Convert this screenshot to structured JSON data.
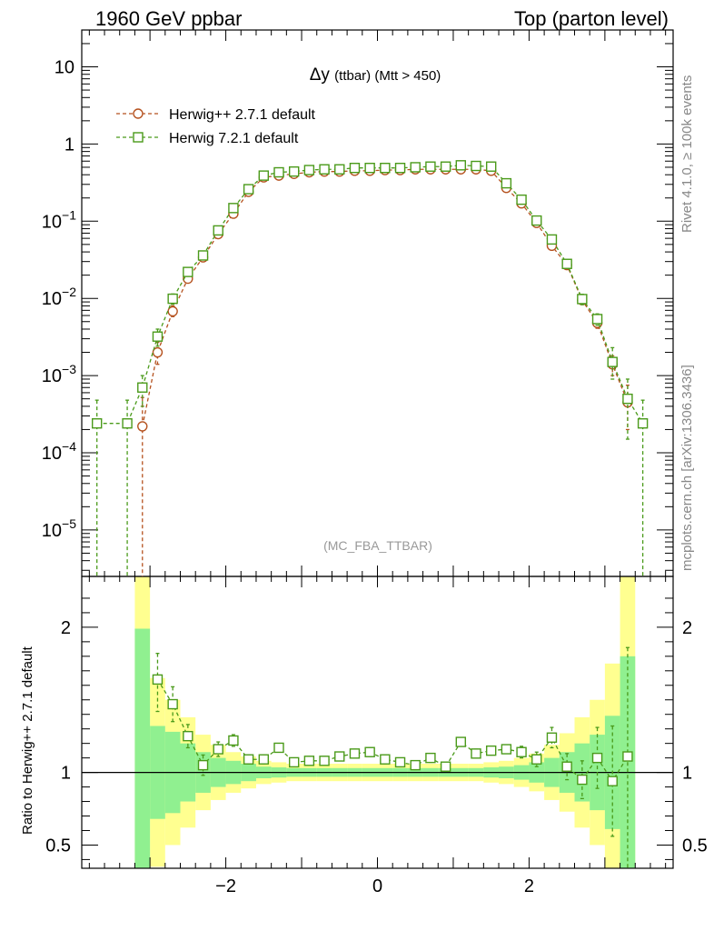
{
  "header": {
    "left": "1960 GeV ppbar",
    "right": "Top (parton level)"
  },
  "side_labels": {
    "rivet": "Rivet 4.1.0, ≥ 100k events",
    "mcplots": "mcplots.cern.ch [arXiv:1306.3436]"
  },
  "colors": {
    "herwigpp": "#b5521f",
    "herwig7": "#4a9a1a",
    "band_green": "#90f090",
    "band_yellow": "#ffff90"
  },
  "chart_data": [
    {
      "type": "line",
      "title_main": "Δy",
      "title_sub": "(ttbar) (Mtt > 450)",
      "watermark": "(MC_FBA_TTBAR)",
      "yscale": "log",
      "xlim": [
        -3.9,
        3.9
      ],
      "ylim": [
        2.5e-06,
        30
      ],
      "yticks": [
        {
          "v": 10,
          "base": "10",
          "exp": ""
        },
        {
          "v": 1,
          "base": "1",
          "exp": ""
        },
        {
          "v": 0.1,
          "base": "10",
          "exp": "−1"
        },
        {
          "v": 0.01,
          "base": "10",
          "exp": "−2"
        },
        {
          "v": 0.001,
          "base": "10",
          "exp": "−3"
        },
        {
          "v": 0.0001,
          "base": "10",
          "exp": "−4"
        },
        {
          "v": 1e-05,
          "base": "10",
          "exp": "−5"
        }
      ],
      "legend_position": "top-left",
      "series": [
        {
          "name": "Herwig++ 2.7.1 default",
          "marker": "circle",
          "color": "#b5521f",
          "x": [
            -3.1,
            -2.9,
            -2.7,
            -2.5,
            -2.3,
            -2.1,
            -1.9,
            -1.7,
            -1.5,
            -1.3,
            -1.1,
            -0.9,
            -0.7,
            -0.5,
            -0.3,
            -0.1,
            0.1,
            0.3,
            0.5,
            0.7,
            0.9,
            1.1,
            1.3,
            1.5,
            1.7,
            1.9,
            2.1,
            2.3,
            2.5,
            2.7,
            2.9,
            3.1,
            3.3
          ],
          "y": [
            0.00022,
            0.002,
            0.0068,
            0.018,
            0.034,
            0.068,
            0.125,
            0.24,
            0.37,
            0.39,
            0.41,
            0.43,
            0.44,
            0.44,
            0.45,
            0.45,
            0.46,
            0.46,
            0.47,
            0.47,
            0.47,
            0.47,
            0.47,
            0.45,
            0.27,
            0.17,
            0.095,
            0.048,
            0.027,
            0.0095,
            0.0048,
            0.0014,
            0.00045
          ],
          "err_low": [
            0.000219,
            0.0006,
            0.001,
            0.002,
            0.003,
            0.004,
            0.005,
            0.006,
            0.008,
            0.008,
            0.008,
            0.008,
            0.008,
            0.008,
            0.008,
            0.008,
            0.008,
            0.008,
            0.008,
            0.008,
            0.008,
            0.008,
            0.008,
            0.008,
            0.006,
            0.005,
            0.004,
            0.003,
            0.002,
            0.001,
            0.0007,
            0.0004,
            0.00025
          ],
          "err_high": [
            0.0003,
            0.0007,
            0.0012,
            0.002,
            0.003,
            0.004,
            0.005,
            0.006,
            0.008,
            0.008,
            0.008,
            0.008,
            0.008,
            0.008,
            0.008,
            0.008,
            0.008,
            0.008,
            0.008,
            0.008,
            0.008,
            0.008,
            0.008,
            0.008,
            0.006,
            0.005,
            0.004,
            0.003,
            0.002,
            0.001,
            0.0007,
            0.0004,
            0.0003
          ]
        },
        {
          "name": "Herwig 7.2.1 default",
          "marker": "square",
          "color": "#4a9a1a",
          "x": [
            -3.7,
            -3.3,
            -3.1,
            -2.9,
            -2.7,
            -2.5,
            -2.3,
            -2.1,
            -1.9,
            -1.7,
            -1.5,
            -1.3,
            -1.1,
            -0.9,
            -0.7,
            -0.5,
            -0.3,
            -0.1,
            0.1,
            0.3,
            0.5,
            0.7,
            0.9,
            1.1,
            1.3,
            1.5,
            1.7,
            1.9,
            2.1,
            2.3,
            2.5,
            2.7,
            2.9,
            3.1,
            3.3,
            3.5
          ],
          "y": [
            0.00024,
            0.00024,
            0.0007,
            0.0032,
            0.0099,
            0.022,
            0.036,
            0.076,
            0.148,
            0.26,
            0.39,
            0.43,
            0.44,
            0.46,
            0.47,
            0.47,
            0.49,
            0.49,
            0.49,
            0.49,
            0.5,
            0.51,
            0.51,
            0.53,
            0.52,
            0.51,
            0.31,
            0.19,
            0.102,
            0.058,
            0.028,
            0.0098,
            0.0054,
            0.0015,
            0.0005,
            0.00024
          ],
          "err_low": [
            0.000239,
            0.000239,
            0.0003,
            0.0008,
            0.0015,
            0.002,
            0.003,
            0.004,
            0.005,
            0.006,
            0.008,
            0.008,
            0.008,
            0.008,
            0.008,
            0.008,
            0.008,
            0.008,
            0.008,
            0.008,
            0.008,
            0.008,
            0.008,
            0.008,
            0.008,
            0.008,
            0.006,
            0.005,
            0.004,
            0.003,
            0.002,
            0.0015,
            0.0009,
            0.0006,
            0.00035,
            0.000239
          ],
          "err_high": [
            0.00024,
            0.00024,
            0.0003,
            0.0008,
            0.0015,
            0.002,
            0.003,
            0.004,
            0.005,
            0.006,
            0.008,
            0.008,
            0.008,
            0.008,
            0.008,
            0.008,
            0.008,
            0.008,
            0.008,
            0.008,
            0.008,
            0.008,
            0.008,
            0.008,
            0.008,
            0.008,
            0.006,
            0.005,
            0.004,
            0.003,
            0.002,
            0.0015,
            0.0009,
            0.0008,
            0.0004,
            0.00024
          ]
        }
      ]
    },
    {
      "type": "line",
      "ylabel": "Ratio to Herwig++ 2.7.1 default",
      "xlim": [
        -3.9,
        3.9
      ],
      "ylim": [
        0.34,
        2.35
      ],
      "yticks": [
        0.5,
        1,
        2
      ],
      "xticks": [
        -2,
        0,
        2
      ],
      "xtick_labels": [
        "−2",
        "0",
        "2"
      ],
      "reference_line": 1,
      "bands": {
        "x_edges": [
          -3.2,
          -3.0,
          -2.8,
          -2.6,
          -2.4,
          -2.2,
          -2.0,
          -1.8,
          -1.6,
          -1.4,
          -1.2,
          -1.0,
          -0.8,
          -0.6,
          -0.4,
          -0.2,
          0.0,
          0.2,
          0.4,
          0.6,
          0.8,
          1.0,
          1.2,
          1.4,
          1.6,
          1.8,
          2.0,
          2.2,
          2.4,
          2.6,
          2.8,
          3.0,
          3.2,
          3.4
        ],
        "green": [
          0.99,
          0.32,
          0.28,
          0.2,
          0.14,
          0.1,
          0.08,
          0.06,
          0.04,
          0.035,
          0.03,
          0.03,
          0.03,
          0.03,
          0.03,
          0.03,
          0.03,
          0.03,
          0.03,
          0.03,
          0.03,
          0.03,
          0.03,
          0.035,
          0.04,
          0.05,
          0.07,
          0.1,
          0.14,
          0.2,
          0.26,
          0.39,
          0.8
        ],
        "yellow": [
          1.4,
          0.65,
          0.5,
          0.38,
          0.26,
          0.19,
          0.14,
          0.11,
          0.08,
          0.07,
          0.06,
          0.06,
          0.06,
          0.06,
          0.06,
          0.06,
          0.06,
          0.06,
          0.06,
          0.06,
          0.06,
          0.06,
          0.06,
          0.07,
          0.08,
          0.1,
          0.13,
          0.19,
          0.27,
          0.38,
          0.5,
          0.75,
          1.4
        ]
      },
      "series": [
        {
          "name": "Herwig 7.2.1 / Herwig++ 2.7.1",
          "marker": "square",
          "color": "#4a9a1a",
          "x": [
            -2.9,
            -2.7,
            -2.5,
            -2.3,
            -2.1,
            -1.9,
            -1.7,
            -1.5,
            -1.3,
            -1.1,
            -0.9,
            -0.7,
            -0.5,
            -0.3,
            -0.1,
            0.1,
            0.3,
            0.5,
            0.7,
            0.9,
            1.1,
            1.3,
            1.5,
            1.7,
            1.9,
            2.1,
            2.3,
            2.5,
            2.7,
            2.9,
            3.1,
            3.3
          ],
          "y": [
            1.64,
            1.47,
            1.25,
            1.05,
            1.16,
            1.22,
            1.09,
            1.09,
            1.17,
            1.07,
            1.08,
            1.08,
            1.11,
            1.13,
            1.14,
            1.09,
            1.07,
            1.05,
            1.1,
            1.04,
            1.21,
            1.13,
            1.15,
            1.16,
            1.14,
            1.09,
            1.24,
            1.04,
            0.95,
            1.1,
            0.94,
            1.11
          ],
          "err_low": [
            0.22,
            0.12,
            0.08,
            0.07,
            0.05,
            0.04,
            0.03,
            0.03,
            0.03,
            0.03,
            0.03,
            0.03,
            0.03,
            0.03,
            0.03,
            0.03,
            0.03,
            0.03,
            0.03,
            0.03,
            0.03,
            0.03,
            0.03,
            0.03,
            0.04,
            0.05,
            0.07,
            0.09,
            0.13,
            0.21,
            0.38,
            0.8
          ],
          "err_high": [
            0.18,
            0.12,
            0.08,
            0.07,
            0.05,
            0.04,
            0.03,
            0.03,
            0.03,
            0.03,
            0.03,
            0.03,
            0.03,
            0.03,
            0.03,
            0.03,
            0.03,
            0.03,
            0.03,
            0.03,
            0.03,
            0.03,
            0.03,
            0.03,
            0.04,
            0.05,
            0.07,
            0.09,
            0.13,
            0.21,
            0.38,
            0.75
          ]
        }
      ]
    }
  ]
}
